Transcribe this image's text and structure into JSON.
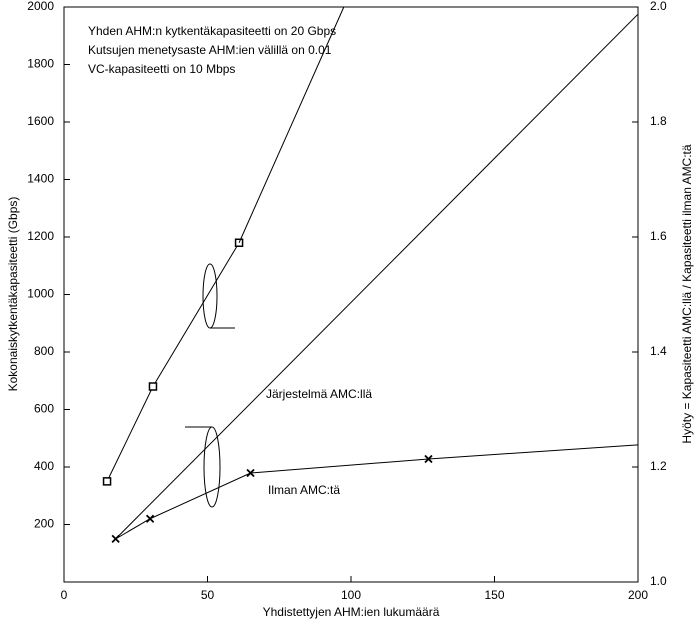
{
  "chart_data": {
    "type": "line",
    "xlabel": "Yhdistettyjen AHM:ien lukumäärä",
    "ylabel": "Kokonaiskytkentäkapasiteetti (Gbps)",
    "y2label": "Hyöty = Kapasiteetti AMC:llä / Kapasiteetti ilman AMC:tä",
    "xlim": [
      0,
      200
    ],
    "xticks": [
      0,
      50,
      100,
      150,
      200
    ],
    "ylim": [
      0,
      2000
    ],
    "yticks": [
      200,
      400,
      600,
      800,
      1000,
      1200,
      1400,
      1600,
      1800,
      2000
    ],
    "y2lim": [
      1.0,
      2.0
    ],
    "y2ticks": [
      {
        "value": 1.0,
        "label": "1.0"
      },
      1.2,
      1.4,
      1.6,
      1.8,
      {
        "value": 2.0,
        "label": "2.0"
      }
    ],
    "color": "#000000",
    "notes": [
      "Yhden AHM:n kytkentäkapasiteetti on 20 Gbps",
      "Kutsujen menetysaste AHM:ien välillä on 0.01",
      "VC-kapasiteetti on 10 Mbps"
    ],
    "annotations": [
      "Järjestelmä AMC:llä",
      "Ilman AMC:tä"
    ],
    "series": [
      {
        "x": [
          15,
          31,
          61
        ],
        "values": [
          1.175,
          1.34,
          1.59
        ],
        "axis": "y2",
        "marker": "square"
      },
      {
        "x": [
          61,
          97.5
        ],
        "values": [
          1.59,
          2.0
        ],
        "axis": "y2"
      },
      {
        "x": [
          18,
          200
        ],
        "values": [
          150,
          1975
        ]
      },
      {
        "x": [
          18,
          30,
          65,
          127
        ],
        "values": [
          150,
          220,
          379,
          428
        ],
        "marker": "cross"
      },
      {
        "x": [
          127,
          200
        ],
        "values": [
          428,
          477
        ]
      }
    ]
  }
}
